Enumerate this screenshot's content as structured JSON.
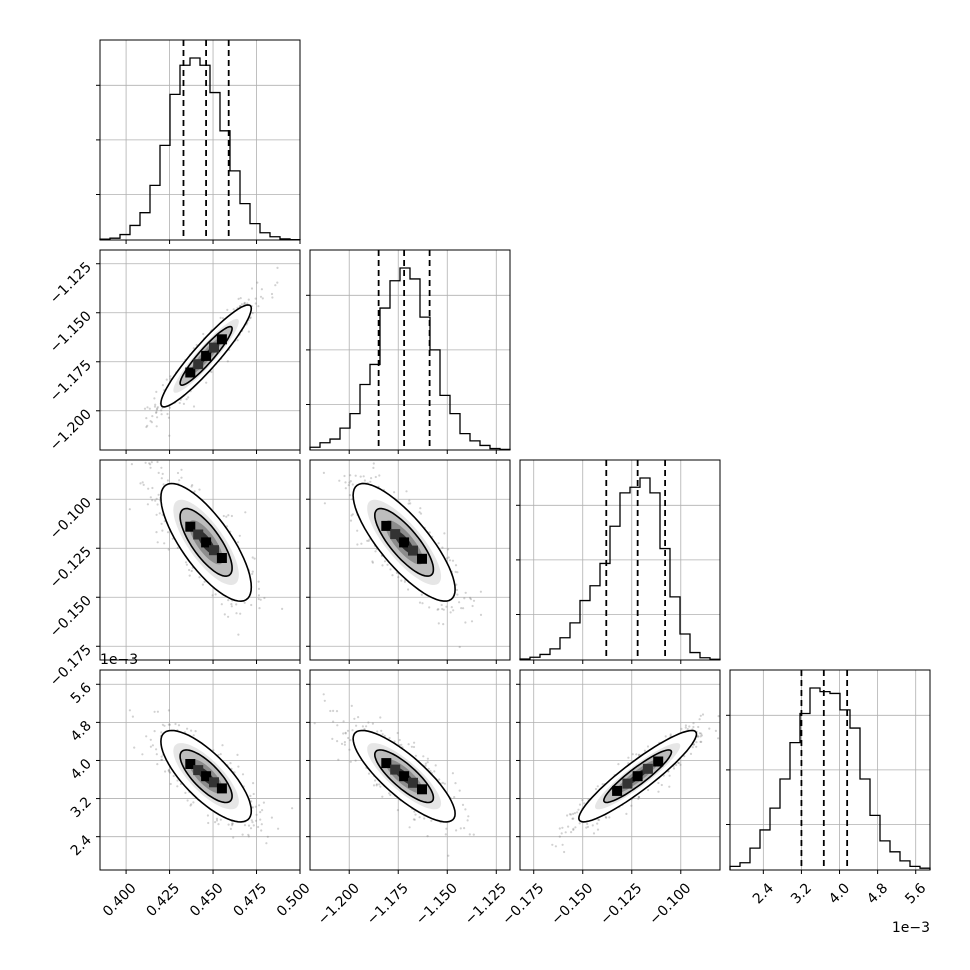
{
  "chart_data": {
    "type": "corner",
    "grid": true,
    "quantile_lines": "dashed",
    "parameters": [
      {
        "range": [
          0.385,
          0.5
        ],
        "ticks": [
          0.4,
          0.425,
          0.45,
          0.475,
          0.5
        ],
        "tick_labels": [
          "0.400",
          "0.425",
          "0.450",
          "0.475",
          "0.500"
        ],
        "quantiles": [
          0.433,
          0.446,
          0.459
        ],
        "hist_bins": 20,
        "hist_counts": [
          0.005,
          0.01,
          0.03,
          0.08,
          0.15,
          0.3,
          0.52,
          0.8,
          0.96,
          1.0,
          0.96,
          0.81,
          0.6,
          0.38,
          0.2,
          0.09,
          0.04,
          0.018,
          0.006,
          0.002
        ]
      },
      {
        "range": [
          -1.22,
          -1.118
        ],
        "ticks": [
          -1.2,
          -1.175,
          -1.15,
          -1.125
        ],
        "tick_labels": [
          "−1.200",
          "−1.175",
          "−1.150",
          "−1.125"
        ],
        "quantiles": [
          -1.185,
          -1.172,
          -1.159
        ],
        "hist_bins": 20,
        "hist_counts": [
          0.015,
          0.04,
          0.06,
          0.12,
          0.2,
          0.36,
          0.47,
          0.78,
          0.93,
          1.0,
          0.94,
          0.73,
          0.55,
          0.3,
          0.2,
          0.09,
          0.05,
          0.025,
          0.008,
          0.003
        ]
      },
      {
        "range": [
          -0.182,
          -0.08
        ],
        "ticks": [
          -0.175,
          -0.15,
          -0.125,
          -0.1
        ],
        "tick_labels": [
          "−0.175",
          "−0.150",
          "−0.125",
          "−0.100"
        ],
        "quantiles": [
          -0.138,
          -0.122,
          -0.108
        ],
        "hist_bins": 20,
        "hist_counts": [
          0.005,
          0.015,
          0.03,
          0.06,
          0.12,
          0.2,
          0.32,
          0.4,
          0.52,
          0.72,
          0.9,
          0.93,
          0.98,
          0.9,
          0.6,
          0.34,
          0.14,
          0.04,
          0.012,
          0.004
        ]
      },
      {
        "range": [
          0.0017,
          0.0059
        ],
        "ticks": [
          0.0024,
          0.0032,
          0.004,
          0.0048,
          0.0056
        ],
        "tick_labels": [
          "2.4",
          "3.2",
          "4.0",
          "4.8",
          "5.6"
        ],
        "offset_label": "1e−3",
        "quantiles": [
          0.0032,
          0.00367,
          0.00416
        ],
        "hist_bins": 20,
        "hist_counts": [
          0.02,
          0.04,
          0.12,
          0.22,
          0.34,
          0.5,
          0.7,
          0.86,
          1.0,
          0.98,
          0.97,
          0.88,
          0.78,
          0.5,
          0.3,
          0.16,
          0.1,
          0.05,
          0.02,
          0.01
        ]
      }
    ],
    "pairs": [
      {
        "row": 1,
        "col": 0,
        "correlation": 0.93
      },
      {
        "row": 2,
        "col": 0,
        "correlation": -0.76
      },
      {
        "row": 2,
        "col": 1,
        "correlation": -0.8
      },
      {
        "row": 3,
        "col": 0,
        "correlation": -0.76
      },
      {
        "row": 3,
        "col": 1,
        "correlation": -0.82
      },
      {
        "row": 3,
        "col": 2,
        "correlation": 0.92
      }
    ]
  }
}
